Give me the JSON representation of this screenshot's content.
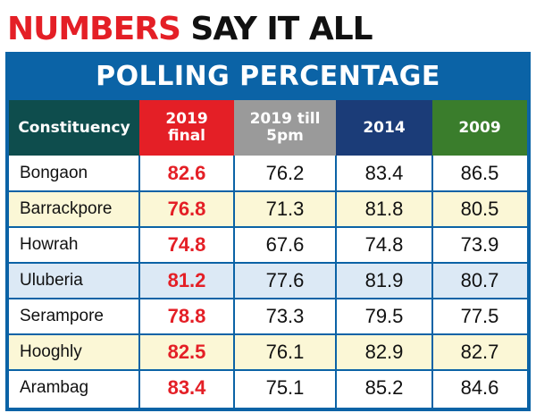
{
  "headline": {
    "part1": "NUMBERS",
    "part2": "SAY IT ALL"
  },
  "banner": "POLLING PERCENTAGE",
  "colors": {
    "frame_blue": "#0b63a6",
    "accent_red": "#e41f26",
    "header_constituency": "#0e4d4d",
    "header_2019_final": "#e41f26",
    "header_2019_till": "#9a9a9a",
    "header_2014": "#1b3c78",
    "header_2009": "#3a7d2c",
    "row_white": "#ffffff",
    "row_yellow": "#fbf7d6",
    "row_blue": "#dce9f5"
  },
  "chart_data": {
    "type": "table",
    "title": "POLLING PERCENTAGE",
    "columns": [
      "Constituency",
      "2019\nfinal",
      "2019 till\n5pm",
      "2014",
      "2009"
    ],
    "rows": [
      {
        "name": "Bongaon",
        "final_2019": "82.6",
        "till_5pm_2019": "76.2",
        "y2014": "83.4",
        "y2009": "86.5",
        "bg": "white"
      },
      {
        "name": "Barrackpore",
        "final_2019": "76.8",
        "till_5pm_2019": "71.3",
        "y2014": "81.8",
        "y2009": "80.5",
        "bg": "yellow"
      },
      {
        "name": "Howrah",
        "final_2019": "74.8",
        "till_5pm_2019": "67.6",
        "y2014": "74.8",
        "y2009": "73.9",
        "bg": "white"
      },
      {
        "name": "Uluberia",
        "final_2019": "81.2",
        "till_5pm_2019": "77.6",
        "y2014": "81.9",
        "y2009": "80.7",
        "bg": "blue"
      },
      {
        "name": "Serampore",
        "final_2019": "78.8",
        "till_5pm_2019": "73.3",
        "y2014": "79.5",
        "y2009": "77.5",
        "bg": "white"
      },
      {
        "name": "Hooghly",
        "final_2019": "82.5",
        "till_5pm_2019": "76.1",
        "y2014": "82.9",
        "y2009": "82.7",
        "bg": "yellow"
      },
      {
        "name": "Arambag",
        "final_2019": "83.4",
        "till_5pm_2019": "75.1",
        "y2014": "85.2",
        "y2009": "84.6",
        "bg": "white"
      }
    ]
  }
}
